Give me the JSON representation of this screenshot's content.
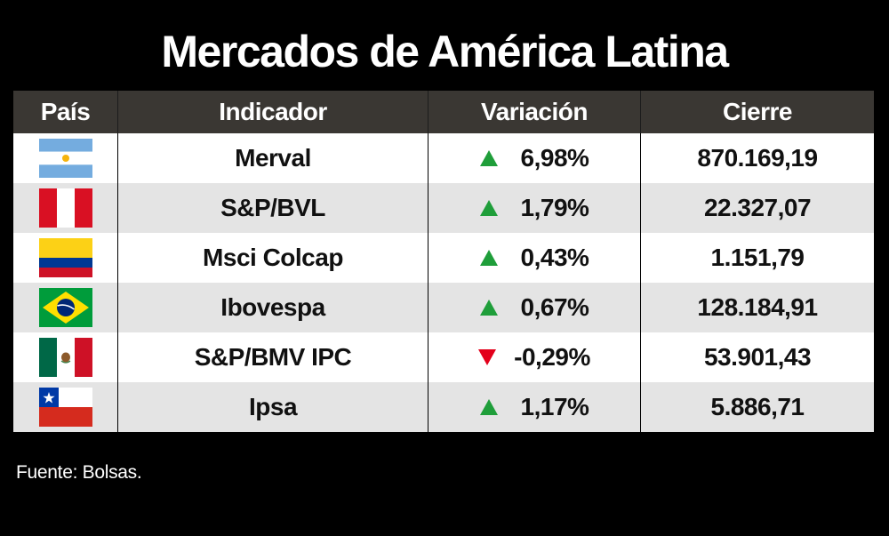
{
  "title": "Mercados de América Latina",
  "headers": {
    "pais": "País",
    "indicador": "Indicador",
    "variacion": "Variación",
    "cierre": "Cierre"
  },
  "rows": [
    {
      "flag_icon": "argentina-flag-icon",
      "indicador": "Merval",
      "direction": "up",
      "variacion": "6,98%",
      "cierre": "870.169,19"
    },
    {
      "flag_icon": "peru-flag-icon",
      "indicador": "S&P/BVL",
      "direction": "up",
      "variacion": "1,79%",
      "cierre": "22.327,07"
    },
    {
      "flag_icon": "colombia-flag-icon",
      "indicador": "Msci Colcap",
      "direction": "up",
      "variacion": "0,43%",
      "cierre": "1.151,79"
    },
    {
      "flag_icon": "brazil-flag-icon",
      "indicador": "Ibovespa",
      "direction": "up",
      "variacion": "0,67%",
      "cierre": "128.184,91"
    },
    {
      "flag_icon": "mexico-flag-icon",
      "indicador": "S&P/BMV IPC",
      "direction": "down",
      "variacion": "-0,29%",
      "cierre": "53.901,43"
    },
    {
      "flag_icon": "chile-flag-icon",
      "indicador": "Ipsa",
      "direction": "up",
      "variacion": "1,17%",
      "cierre": "5.886,71"
    }
  ],
  "source": "Fuente: Bolsas.",
  "colors": {
    "up": "#1f9e3a",
    "down": "#e3001b",
    "header_bg": "#3a3733",
    "row_alt": "#e4e4e4"
  }
}
